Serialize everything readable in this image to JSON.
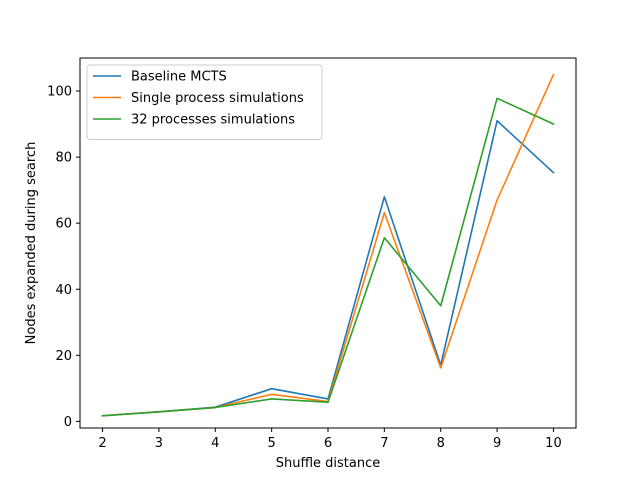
{
  "chart_data": {
    "type": "line",
    "xlabel": "Shuffle distance",
    "ylabel": "Nodes expanded during search",
    "x": [
      2,
      3,
      4,
      5,
      6,
      7,
      8,
      9,
      10
    ],
    "xlim": [
      1.6,
      10.4
    ],
    "ylim": [
      -2,
      110
    ],
    "yticks": [
      0,
      20,
      40,
      60,
      80,
      100
    ],
    "grid": false,
    "legend_position": "top-left",
    "series": [
      {
        "name": "Baseline MCTS",
        "color": "#1f77b4",
        "values": [
          1.7,
          2.9,
          4.3,
          9.9,
          6.8,
          68.0,
          17.0,
          91.0,
          75.3
        ]
      },
      {
        "name": "Single process simulations",
        "color": "#ff7f0e",
        "values": [
          1.7,
          2.9,
          4.2,
          8.2,
          6.0,
          63.2,
          16.2,
          67.0,
          105.0
        ]
      },
      {
        "name": "32 processes simulations",
        "color": "#2ca02c",
        "values": [
          1.7,
          2.9,
          4.2,
          6.8,
          5.8,
          55.6,
          35.0,
          97.8,
          90.0
        ]
      }
    ]
  }
}
